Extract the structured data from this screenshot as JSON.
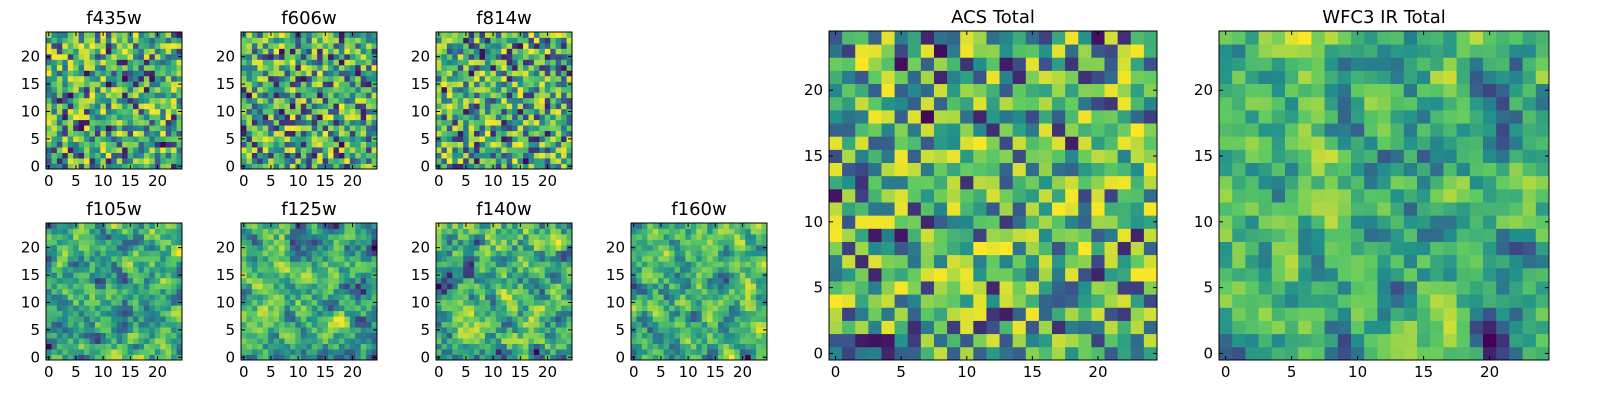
{
  "figure": {
    "width": 1600,
    "height": 400
  },
  "colormap": {
    "name": "viridis",
    "stops": [
      "#440154",
      "#3b528b",
      "#21918c",
      "#5ec962",
      "#fde725"
    ]
  },
  "chart_data": [
    {
      "id": "f435w",
      "type": "heatmap",
      "title": "f435w",
      "grid_size": 25,
      "xlim": [
        0,
        24
      ],
      "ylim": [
        0,
        24
      ],
      "xticks": [
        0,
        5,
        10,
        15,
        20
      ],
      "yticks": [
        0,
        5,
        10,
        15,
        20
      ],
      "seed": 11,
      "smooth": 0,
      "bias": 0.55
    },
    {
      "id": "f606w",
      "type": "heatmap",
      "title": "f606w",
      "grid_size": 25,
      "xlim": [
        0,
        24
      ],
      "ylim": [
        0,
        24
      ],
      "xticks": [
        0,
        5,
        10,
        15,
        20
      ],
      "yticks": [
        0,
        5,
        10,
        15,
        20
      ],
      "seed": 23,
      "smooth": 0,
      "bias": 0.55
    },
    {
      "id": "f814w",
      "type": "heatmap",
      "title": "f814w",
      "grid_size": 25,
      "xlim": [
        0,
        24
      ],
      "ylim": [
        0,
        24
      ],
      "xticks": [
        0,
        5,
        10,
        15,
        20
      ],
      "yticks": [
        0,
        5,
        10,
        15,
        20
      ],
      "seed": 37,
      "smooth": 0,
      "bias": 0.55
    },
    {
      "id": "f105w",
      "type": "heatmap",
      "title": "f105w",
      "grid_size": 25,
      "xlim": [
        0,
        24
      ],
      "ylim": [
        0,
        24
      ],
      "xticks": [
        0,
        5,
        10,
        15,
        20
      ],
      "yticks": [
        0,
        5,
        10,
        15,
        20
      ],
      "seed": 41,
      "smooth": 1,
      "bias": 0.55
    },
    {
      "id": "f125w",
      "type": "heatmap",
      "title": "f125w",
      "grid_size": 25,
      "xlim": [
        0,
        24
      ],
      "ylim": [
        0,
        24
      ],
      "xticks": [
        0,
        5,
        10,
        15,
        20
      ],
      "yticks": [
        0,
        5,
        10,
        15,
        20
      ],
      "seed": 53,
      "smooth": 1,
      "bias": 0.55
    },
    {
      "id": "f140w",
      "type": "heatmap",
      "title": "f140w",
      "grid_size": 25,
      "xlim": [
        0,
        24
      ],
      "ylim": [
        0,
        24
      ],
      "xticks": [
        0,
        5,
        10,
        15,
        20
      ],
      "yticks": [
        0,
        5,
        10,
        15,
        20
      ],
      "seed": 67,
      "smooth": 1,
      "bias": 0.55
    },
    {
      "id": "f160w",
      "type": "heatmap",
      "title": "f160w",
      "grid_size": 25,
      "xlim": [
        0,
        24
      ],
      "ylim": [
        0,
        24
      ],
      "xticks": [
        0,
        5,
        10,
        15,
        20
      ],
      "yticks": [
        0,
        5,
        10,
        15,
        20
      ],
      "seed": 79,
      "smooth": 1,
      "bias": 0.55
    },
    {
      "id": "acs-total",
      "type": "heatmap",
      "title": "ACS Total",
      "grid_size": 25,
      "xlim": [
        0,
        24
      ],
      "ylim": [
        0,
        24
      ],
      "xticks": [
        0,
        5,
        10,
        15,
        20
      ],
      "yticks": [
        0,
        5,
        10,
        15,
        20
      ],
      "seed": 97,
      "smooth": 0,
      "bias": 0.62
    },
    {
      "id": "wfc3-ir-total",
      "type": "heatmap",
      "title": "WFC3 IR Total",
      "grid_size": 25,
      "xlim": [
        0,
        24
      ],
      "ylim": [
        0,
        24
      ],
      "xticks": [
        0,
        5,
        10,
        15,
        20
      ],
      "yticks": [
        0,
        5,
        10,
        15,
        20
      ],
      "seed": 131,
      "smooth": 1,
      "bias": 0.58
    }
  ]
}
